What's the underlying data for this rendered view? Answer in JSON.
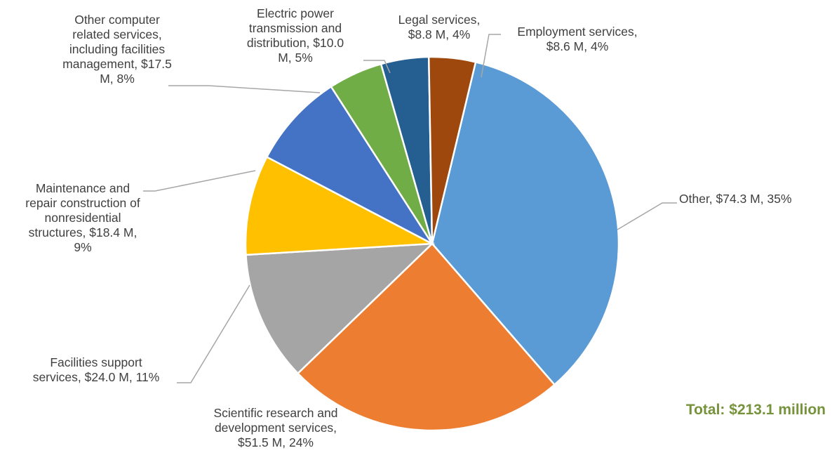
{
  "chart_data": {
    "type": "pie",
    "title": "",
    "total_label": "Total: $213.1 million",
    "total_color": "#76933c",
    "slices": [
      {
        "name": "Other",
        "value": 74.3,
        "label_lines": [
          "Other,  $74.3 M, 35%"
        ],
        "color": "#5b9bd5"
      },
      {
        "name": "Scientific research and development services",
        "value": 51.5,
        "label_lines": [
          "Scientific research and",
          "development services,",
          "$51.5 M, 24%"
        ],
        "color": "#ed7d31"
      },
      {
        "name": "Facilities support services",
        "value": 24.0,
        "label_lines": [
          "Facilities support",
          "services,  $24.0 M, 11%"
        ],
        "color": "#a5a5a5"
      },
      {
        "name": "Maintenance and repair construction of nonresidential structures",
        "value": 18.4,
        "label_lines": [
          "Maintenance and",
          "repair construction of",
          "nonresidential",
          "structures,  $18.4 M,",
          "9%"
        ],
        "color": "#ffc000"
      },
      {
        "name": "Other computer related services, including facilities management",
        "value": 17.5,
        "label_lines": [
          "Other computer",
          "related services,",
          "including facilities",
          "management,  $17.5",
          "M, 8%"
        ],
        "color": "#4472c4"
      },
      {
        "name": "Electric power transmission and distribution",
        "value": 10.0,
        "label_lines": [
          "Electric power",
          "transmission and",
          "distribution,  $10.0",
          "M, 5%"
        ],
        "color": "#70ad47"
      },
      {
        "name": "Legal services",
        "value": 8.8,
        "label_lines": [
          "Legal services,",
          "$8.8 M, 4%"
        ],
        "color": "#255e91"
      },
      {
        "name": "Employment services",
        "value": 8.6,
        "label_lines": [
          "Employment services,",
          "$8.6 M, 4%"
        ],
        "color": "#9e480e"
      }
    ]
  }
}
